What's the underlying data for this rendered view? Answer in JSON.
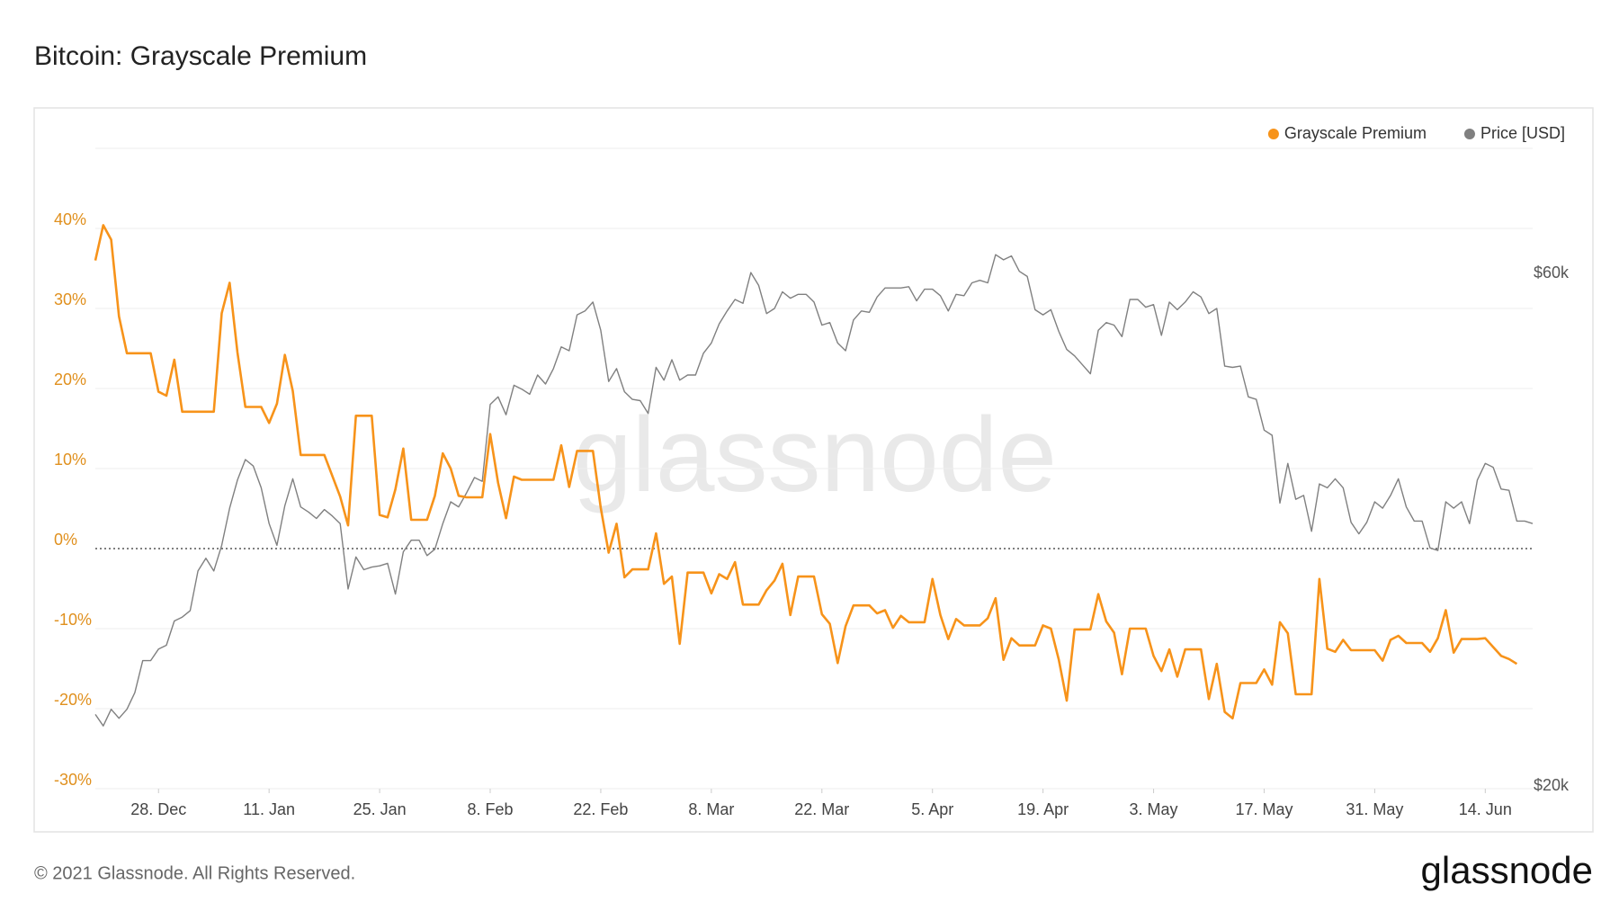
{
  "chart_data": {
    "type": "line",
    "title": "Bitcoin: Grayscale Premium",
    "watermark": "glassnode",
    "footer": "© 2021 Glassnode. All Rights Reserved.",
    "brand": "glassnode",
    "legend": "top-right",
    "grid": true,
    "xlim": [
      0,
      182
    ],
    "xticks": [
      {
        "value": 8,
        "label": "28. Dec"
      },
      {
        "value": 22,
        "label": "11. Jan"
      },
      {
        "value": 36,
        "label": "25. Jan"
      },
      {
        "value": 50,
        "label": "8. Feb"
      },
      {
        "value": 64,
        "label": "22. Feb"
      },
      {
        "value": 78,
        "label": "8. Mar"
      },
      {
        "value": 92,
        "label": "22. Mar"
      },
      {
        "value": 106,
        "label": "5. Apr"
      },
      {
        "value": 120,
        "label": "19. Apr"
      },
      {
        "value": 134,
        "label": "3. May"
      },
      {
        "value": 148,
        "label": "17. May"
      },
      {
        "value": 162,
        "label": "31. May"
      },
      {
        "value": 176,
        "label": "14. Jun"
      }
    ],
    "ylim": [
      -30,
      50
    ],
    "yticks": [
      {
        "value": -30,
        "label": "-30%"
      },
      {
        "value": -20,
        "label": "-20%"
      },
      {
        "value": -10,
        "label": "-10%"
      },
      {
        "value": 0,
        "label": "0%"
      },
      {
        "value": 10,
        "label": "10%"
      },
      {
        "value": 20,
        "label": "20%"
      },
      {
        "value": 30,
        "label": "30%"
      },
      {
        "value": 40,
        "label": "40%"
      }
    ],
    "y2lim": [
      20000,
      70000
    ],
    "y2ticks": [
      {
        "value": 20000,
        "label": "$20k"
      },
      {
        "value": 60000,
        "label": "$60k"
      }
    ],
    "series": [
      {
        "name": "Grayscale Premium",
        "color": "#f7931a",
        "x": [
          0,
          1,
          2,
          3,
          4,
          7,
          8,
          9,
          10,
          11,
          15,
          16,
          17,
          18,
          19,
          21,
          22,
          23,
          24,
          25,
          26,
          29,
          31,
          32,
          33,
          35,
          36,
          37,
          38,
          39,
          40,
          42,
          43,
          44,
          45,
          46,
          47,
          49,
          50,
          51,
          52,
          53,
          54,
          58,
          59,
          60,
          61,
          63,
          64,
          65,
          66,
          67,
          68,
          70,
          71,
          72,
          73,
          74,
          75,
          77,
          78,
          79,
          80,
          81,
          82,
          84,
          85,
          86,
          87,
          88,
          89,
          91,
          92,
          93,
          94,
          95,
          96,
          98,
          99,
          100,
          101,
          102,
          103,
          105,
          106,
          107,
          108,
          109,
          110,
          112,
          113,
          114,
          115,
          116,
          117,
          119,
          120,
          121,
          122,
          123,
          124,
          126,
          127,
          128,
          129,
          130,
          131,
          133,
          134,
          135,
          136,
          137,
          138,
          140,
          141,
          142,
          143,
          144,
          145,
          147,
          148,
          149,
          150,
          151,
          152,
          154,
          155,
          156,
          157,
          158,
          159,
          162,
          163,
          164,
          165,
          166,
          168,
          169,
          170,
          171,
          172,
          173,
          175,
          176,
          177,
          178,
          179,
          180
        ],
        "values": [
          36,
          40.4,
          38.6,
          29,
          24.4,
          24.4,
          19.6,
          19.1,
          23.6,
          17.1,
          17.1,
          29.4,
          33.2,
          24.5,
          17.7,
          17.7,
          15.7,
          18.1,
          24.2,
          19.7,
          11.7,
          11.7,
          6.5,
          2.9,
          16.6,
          16.6,
          4.2,
          3.9,
          7.4,
          12.5,
          3.6,
          3.6,
          6.6,
          11.9,
          10,
          6.6,
          6.4,
          6.4,
          14.3,
          8.2,
          3.8,
          9,
          8.6,
          8.6,
          12.9,
          7.7,
          12.2,
          12.2,
          5.1,
          -0.5,
          3.1,
          -3.6,
          -2.6,
          -2.6,
          1.9,
          -4.4,
          -3.5,
          -11.9,
          -3,
          -3,
          -5.6,
          -3.2,
          -3.8,
          -1.7,
          -7,
          -7,
          -5.2,
          -4,
          -1.9,
          -8.3,
          -3.5,
          -3.5,
          -8.2,
          -9.4,
          -14.3,
          -9.7,
          -7.1,
          -7.1,
          -8.1,
          -7.7,
          -9.9,
          -8.4,
          -9.2,
          -9.2,
          -3.8,
          -8.3,
          -11.3,
          -8.8,
          -9.6,
          -9.6,
          -8.7,
          -6.2,
          -13.9,
          -11.2,
          -12.1,
          -12.1,
          -9.6,
          -10,
          -13.9,
          -19,
          -10.1,
          -10.1,
          -5.7,
          -9.1,
          -10.5,
          -15.7,
          -10,
          -10,
          -13.4,
          -15.3,
          -12.6,
          -16,
          -12.6,
          -12.6,
          -18.8,
          -14.4,
          -20.4,
          -21.2,
          -16.8,
          -16.8,
          -15.1,
          -17,
          -9.2,
          -10.6,
          -18.2,
          -18.2,
          -3.8,
          -12.5,
          -12.9,
          -11.4,
          -12.7,
          -12.7,
          -14,
          -11.4,
          -10.9,
          -11.8,
          -11.8,
          -12.9,
          -11.2,
          -7.7,
          -13,
          -11.3,
          -11.3,
          -11.2,
          -12.3,
          -13.4,
          -13.8,
          -14.4
        ]
      },
      {
        "name": "Price [USD]",
        "color": "#808080",
        "axis": "y2",
        "x": [
          0,
          1,
          2,
          3,
          4,
          5,
          6,
          7,
          8,
          9,
          10,
          11,
          12,
          13,
          14,
          15,
          16,
          17,
          18,
          19,
          20,
          21,
          22,
          23,
          24,
          25,
          26,
          27,
          28,
          29,
          30,
          31,
          32,
          33,
          34,
          35,
          36,
          37,
          38,
          39,
          40,
          41,
          42,
          43,
          44,
          45,
          46,
          47,
          48,
          49,
          50,
          51,
          52,
          53,
          54,
          55,
          56,
          57,
          58,
          59,
          60,
          61,
          62,
          63,
          64,
          65,
          66,
          67,
          68,
          69,
          70,
          71,
          72,
          73,
          74,
          75,
          76,
          77,
          78,
          79,
          80,
          81,
          82,
          83,
          84,
          85,
          86,
          87,
          88,
          89,
          90,
          91,
          92,
          93,
          94,
          95,
          96,
          97,
          98,
          99,
          100,
          101,
          102,
          103,
          104,
          105,
          106,
          107,
          108,
          109,
          110,
          111,
          112,
          113,
          114,
          115,
          116,
          117,
          118,
          119,
          120,
          121,
          122,
          123,
          124,
          125,
          126,
          127,
          128,
          129,
          130,
          131,
          132,
          133,
          134,
          135,
          136,
          137,
          138,
          139,
          140,
          141,
          142,
          143,
          144,
          145,
          146,
          147,
          148,
          149,
          150,
          151,
          152,
          153,
          154,
          155,
          156,
          157,
          158,
          159,
          160,
          161,
          162,
          163,
          164,
          165,
          166,
          167,
          168,
          169,
          170,
          171,
          172,
          173,
          174,
          175,
          176,
          177,
          178,
          179,
          180,
          181,
          182
        ],
        "values": [
          25800,
          24900,
          26200,
          25500,
          26200,
          27500,
          30000,
          30000,
          30900,
          31200,
          33100,
          33400,
          33900,
          37000,
          38000,
          37000,
          39000,
          41900,
          44100,
          45700,
          45200,
          43500,
          40700,
          39000,
          42100,
          44200,
          42000,
          41600,
          41100,
          41800,
          41300,
          40700,
          35600,
          38100,
          37100,
          37300,
          37400,
          37600,
          35200,
          38500,
          39400,
          39400,
          38200,
          38700,
          40700,
          42400,
          42000,
          43100,
          44300,
          44000,
          50000,
          50600,
          49200,
          51500,
          51200,
          50800,
          52300,
          51600,
          52800,
          54500,
          54200,
          57000,
          57300,
          58000,
          55800,
          51800,
          52800,
          51000,
          50400,
          50300,
          49300,
          52900,
          51900,
          53500,
          51900,
          52300,
          52300,
          54000,
          54800,
          56300,
          57300,
          58200,
          57900,
          60300,
          59300,
          57100,
          57500,
          58800,
          58300,
          58600,
          58600,
          58000,
          56200,
          56400,
          54800,
          54200,
          56600,
          57300,
          57200,
          58400,
          59100,
          59100,
          59100,
          59200,
          58100,
          59000,
          59000,
          58500,
          57300,
          58600,
          58500,
          59500,
          59700,
          59500,
          61700,
          61300,
          61600,
          60400,
          60000,
          57400,
          57000,
          57400,
          55700,
          54300,
          53800,
          53100,
          52400,
          55800,
          56400,
          56200,
          55300,
          58200,
          58200,
          57600,
          57800,
          55400,
          58000,
          57400,
          58000,
          58800,
          58400,
          57100,
          57500,
          53000,
          52900,
          53000,
          50600,
          50400,
          48000,
          47600,
          42300,
          45400,
          42600,
          42900,
          40100,
          43800,
          43500,
          44200,
          43500,
          40800,
          39900,
          40800,
          42400,
          41900,
          42900,
          44200,
          42000,
          40900,
          40900,
          38800,
          38600,
          42400,
          41900,
          42400,
          40700,
          44100,
          45400,
          45100,
          43400,
          43300,
          40900,
          40900,
          40700
        ]
      }
    ]
  }
}
